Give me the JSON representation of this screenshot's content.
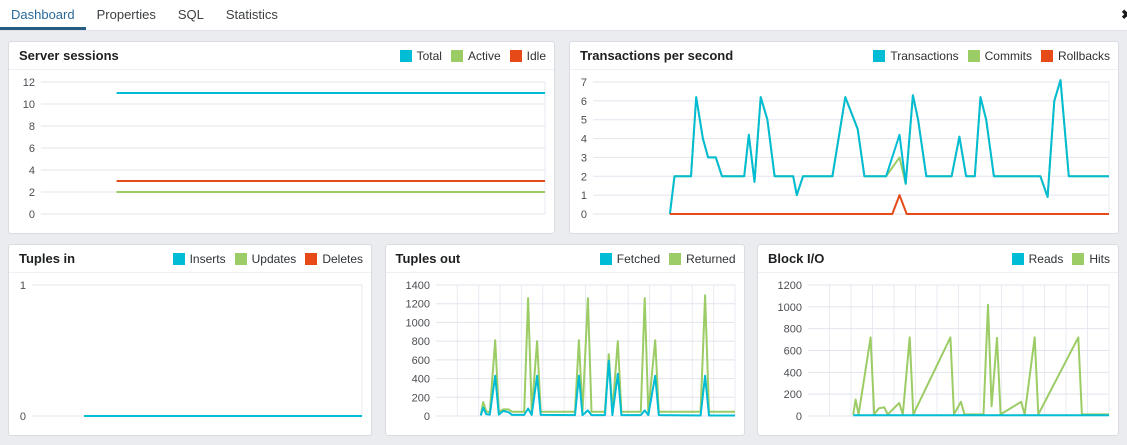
{
  "tab_bar": {
    "tabs": [
      {
        "label": "Dashboard",
        "active": true
      },
      {
        "label": "Properties",
        "active": false
      },
      {
        "label": "SQL",
        "active": false
      },
      {
        "label": "Statistics",
        "active": false
      }
    ],
    "close_label": "✖"
  },
  "palette": {
    "cyan": "#00BCD4",
    "green": "#9CCC65",
    "red": "#E64A19",
    "active_tab_text": "#2b6a9b",
    "active_tab_underline": "#265c82",
    "grid_line": "#e2e4ee",
    "grid_line_vertical": "#e9ebf2",
    "axis_label": "#4b4e53"
  },
  "chart_data": [
    {
      "id": "server-sessions",
      "title": "Server sessions",
      "type": "line",
      "xlabel": "",
      "ylabel": "",
      "ylim": [
        0,
        12
      ],
      "yticks": [
        0,
        2,
        4,
        6,
        8,
        10,
        12
      ],
      "grid": {
        "horizontal": true,
        "vertical": false
      },
      "legend_position": "top-right",
      "series": [
        {
          "name": "Total",
          "color": "cyan",
          "points": [
            [
              15,
              11
            ],
            [
              100,
              11
            ]
          ]
        },
        {
          "name": "Active",
          "color": "green",
          "points": [
            [
              15,
              2
            ],
            [
              100,
              2
            ]
          ]
        },
        {
          "name": "Idle",
          "color": "red",
          "points": [
            [
              15,
              3
            ],
            [
              100,
              3
            ]
          ]
        }
      ],
      "draw_order": [
        0,
        1,
        2
      ]
    },
    {
      "id": "transactions-per-second",
      "title": "Transactions per second",
      "type": "line",
      "xlabel": "",
      "ylabel": "",
      "ylim": [
        0,
        7
      ],
      "yticks": [
        0,
        1,
        2,
        3,
        4,
        5,
        6,
        7
      ],
      "grid": {
        "horizontal": true,
        "vertical": false
      },
      "legend_position": "top-right",
      "series": [
        {
          "name": "Transactions",
          "color": "cyan",
          "points": [
            [
              14.9,
              0
            ],
            [
              15.8,
              2
            ],
            [
              19,
              2
            ],
            [
              20,
              6.2
            ],
            [
              21.3,
              4
            ],
            [
              22.3,
              3
            ],
            [
              23.8,
              3
            ],
            [
              25,
              2
            ],
            [
              29.3,
              2
            ],
            [
              30.2,
              4.2
            ],
            [
              31.3,
              1.7
            ],
            [
              32.5,
              6.2
            ],
            [
              33.8,
              5
            ],
            [
              35.2,
              2
            ],
            [
              38.8,
              2
            ],
            [
              39.5,
              1
            ],
            [
              40.7,
              2
            ],
            [
              46.4,
              2
            ],
            [
              48.9,
              6.2
            ],
            [
              51.3,
              4.5
            ],
            [
              52.6,
              2
            ],
            [
              56.8,
              2
            ],
            [
              59.4,
              4.2
            ],
            [
              60.6,
              1.6
            ],
            [
              62,
              6.3
            ],
            [
              63,
              5
            ],
            [
              64.6,
              2
            ],
            [
              69.5,
              2
            ],
            [
              71,
              4.1
            ],
            [
              72.3,
              2
            ],
            [
              74,
              2
            ],
            [
              75.1,
              6.2
            ],
            [
              76.2,
              5
            ],
            [
              77.7,
              2
            ],
            [
              86.7,
              2
            ],
            [
              88.1,
              0.9
            ],
            [
              89.4,
              6
            ],
            [
              90.6,
              7.1
            ],
            [
              92.2,
              2
            ],
            [
              100,
              2
            ]
          ]
        },
        {
          "name": "Commits",
          "color": "green",
          "points": [
            [
              14.9,
              0
            ],
            [
              15.8,
              2
            ],
            [
              19,
              2
            ],
            [
              20,
              6.2
            ],
            [
              21.3,
              4
            ],
            [
              22.3,
              3
            ],
            [
              23.8,
              3
            ],
            [
              25,
              2
            ],
            [
              29.3,
              2
            ],
            [
              30.2,
              4.2
            ],
            [
              31.3,
              1.7
            ],
            [
              32.5,
              6.2
            ],
            [
              33.8,
              5
            ],
            [
              35.2,
              2
            ],
            [
              38.8,
              2
            ],
            [
              39.5,
              1
            ],
            [
              40.7,
              2
            ],
            [
              46.4,
              2
            ],
            [
              48.9,
              6.2
            ],
            [
              51.3,
              4.5
            ],
            [
              52.6,
              2
            ],
            [
              56.8,
              2
            ],
            [
              59.4,
              3
            ],
            [
              60.6,
              1.6
            ],
            [
              62,
              6.3
            ],
            [
              63,
              5
            ],
            [
              64.6,
              2
            ],
            [
              69.5,
              2
            ],
            [
              71,
              4.1
            ],
            [
              72.3,
              2
            ],
            [
              74,
              2
            ],
            [
              75.1,
              6.2
            ],
            [
              76.2,
              5
            ],
            [
              77.7,
              2
            ],
            [
              86.7,
              2
            ],
            [
              88.1,
              0.9
            ],
            [
              89.4,
              6
            ],
            [
              90.6,
              7.1
            ],
            [
              92.2,
              2
            ],
            [
              100,
              2
            ]
          ]
        },
        {
          "name": "Rollbacks",
          "color": "red",
          "points": [
            [
              14.9,
              0
            ],
            [
              58,
              0
            ],
            [
              59.4,
              1
            ],
            [
              60.8,
              0
            ],
            [
              100,
              0
            ]
          ]
        }
      ],
      "draw_order": [
        1,
        0,
        2
      ]
    },
    {
      "id": "tuples-in",
      "title": "Tuples in",
      "type": "line",
      "xlabel": "",
      "ylabel": "",
      "ylim": [
        0,
        1
      ],
      "yticks": [
        0,
        1
      ],
      "grid": {
        "horizontal": true,
        "vertical": false
      },
      "legend_position": "top-right",
      "series": [
        {
          "name": "Inserts",
          "color": "cyan",
          "points": [
            [
              15.8,
              0
            ],
            [
              100,
              0
            ]
          ]
        },
        {
          "name": "Updates",
          "color": "green",
          "points": [
            [
              15.8,
              0
            ],
            [
              100,
              0
            ]
          ]
        },
        {
          "name": "Deletes",
          "color": "red",
          "points": [
            [
              15.8,
              0
            ],
            [
              100,
              0
            ]
          ]
        }
      ],
      "draw_order": [
        2,
        1,
        0
      ]
    },
    {
      "id": "tuples-out",
      "title": "Tuples out",
      "type": "line",
      "xlabel": "",
      "ylabel": "",
      "ylim": [
        0,
        1400
      ],
      "yticks": [
        0,
        200,
        400,
        600,
        800,
        1000,
        1200,
        1400
      ],
      "grid": {
        "horizontal": true,
        "vertical": true
      },
      "legend_position": "top-right",
      "series": [
        {
          "name": "Fetched",
          "color": "cyan",
          "points": [
            [
              15,
              5
            ],
            [
              15.8,
              90
            ],
            [
              16.8,
              20
            ],
            [
              18,
              15
            ],
            [
              19.8,
              430
            ],
            [
              21,
              15
            ],
            [
              22.5,
              55
            ],
            [
              24.3,
              40
            ],
            [
              25.5,
              12
            ],
            [
              29.5,
              12
            ],
            [
              30.8,
              80
            ],
            [
              32,
              12
            ],
            [
              33.8,
              430
            ],
            [
              35,
              12
            ],
            [
              46.5,
              10
            ],
            [
              47.8,
              430
            ],
            [
              49,
              10
            ],
            [
              50.8,
              60
            ],
            [
              52,
              10
            ],
            [
              56.5,
              10
            ],
            [
              57.8,
              590
            ],
            [
              59,
              10
            ],
            [
              60.8,
              450
            ],
            [
              62,
              10
            ],
            [
              68.5,
              10
            ],
            [
              69.8,
              60
            ],
            [
              71,
              10
            ],
            [
              73.3,
              430
            ],
            [
              74.5,
              10
            ],
            [
              88.5,
              5
            ],
            [
              90,
              430
            ],
            [
              91.3,
              5
            ],
            [
              100,
              5
            ]
          ]
        },
        {
          "name": "Returned",
          "color": "green",
          "points": [
            [
              15,
              10
            ],
            [
              15.8,
              150
            ],
            [
              16.8,
              50
            ],
            [
              18,
              40
            ],
            [
              19.8,
              810
            ],
            [
              21,
              45
            ],
            [
              22.5,
              70
            ],
            [
              24.3,
              70
            ],
            [
              25.5,
              45
            ],
            [
              29.5,
              45
            ],
            [
              30.8,
              1260
            ],
            [
              32,
              45
            ],
            [
              33.8,
              800
            ],
            [
              35,
              45
            ],
            [
              46.5,
              45
            ],
            [
              47.8,
              810
            ],
            [
              49,
              45
            ],
            [
              50.8,
              1260
            ],
            [
              52,
              45
            ],
            [
              56.5,
              45
            ],
            [
              57.8,
              660
            ],
            [
              59,
              45
            ],
            [
              60.8,
              800
            ],
            [
              62,
              45
            ],
            [
              68.5,
              45
            ],
            [
              69.8,
              1260
            ],
            [
              71,
              45
            ],
            [
              73.3,
              810
            ],
            [
              74.5,
              45
            ],
            [
              88.5,
              45
            ],
            [
              90,
              1290
            ],
            [
              91.3,
              45
            ],
            [
              100,
              45
            ]
          ]
        }
      ],
      "draw_order": [
        1,
        0
      ]
    },
    {
      "id": "block-io",
      "title": "Block I/O",
      "type": "line",
      "xlabel": "",
      "ylabel": "",
      "ylim": [
        0,
        1200
      ],
      "yticks": [
        0,
        200,
        400,
        600,
        800,
        1000,
        1200
      ],
      "grid": {
        "horizontal": true,
        "vertical": true
      },
      "legend_position": "top-right",
      "series": [
        {
          "name": "Reads",
          "color": "cyan",
          "points": [
            [
              15,
              6
            ],
            [
              100,
              6
            ]
          ]
        },
        {
          "name": "Hits",
          "color": "green",
          "points": [
            [
              15,
              12
            ],
            [
              15.8,
              150
            ],
            [
              16.8,
              15
            ],
            [
              20.8,
              720
            ],
            [
              22,
              15
            ],
            [
              23.5,
              70
            ],
            [
              25.3,
              80
            ],
            [
              26.5,
              15
            ],
            [
              30.3,
              120
            ],
            [
              31.5,
              15
            ],
            [
              33.8,
              720
            ],
            [
              35,
              15
            ],
            [
              47.3,
              720
            ],
            [
              48.5,
              15
            ],
            [
              50.8,
              130
            ],
            [
              52,
              15
            ],
            [
              58.3,
              15
            ],
            [
              59.8,
              1020
            ],
            [
              61,
              90
            ],
            [
              62.8,
              715
            ],
            [
              64,
              15
            ],
            [
              70.8,
              130
            ],
            [
              72,
              15
            ],
            [
              75.3,
              720
            ],
            [
              76.5,
              15
            ],
            [
              89.8,
              720
            ],
            [
              91,
              15
            ],
            [
              100,
              15
            ]
          ]
        }
      ],
      "draw_order": [
        1,
        0
      ]
    }
  ]
}
